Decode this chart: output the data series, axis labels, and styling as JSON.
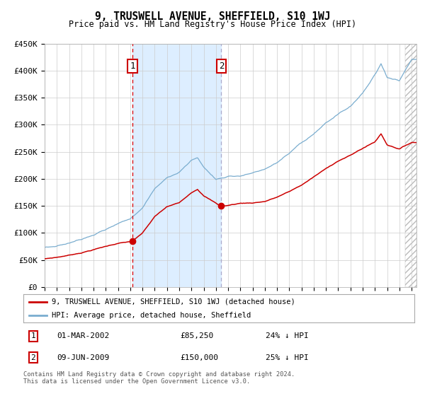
{
  "title": "9, TRUSWELL AVENUE, SHEFFIELD, S10 1WJ",
  "subtitle": "Price paid vs. HM Land Registry's House Price Index (HPI)",
  "x_start_year": 1995,
  "x_end_year": 2025,
  "y_min": 0,
  "y_max": 450000,
  "y_ticks": [
    0,
    50000,
    100000,
    150000,
    200000,
    250000,
    300000,
    350000,
    400000,
    450000
  ],
  "y_tick_labels": [
    "£0",
    "£50K",
    "£100K",
    "£150K",
    "£200K",
    "£250K",
    "£300K",
    "£350K",
    "£400K",
    "£450K"
  ],
  "sale1_date": 2002.17,
  "sale1_price": 85250,
  "sale1_label": "1",
  "sale1_text": "01-MAR-2002",
  "sale1_price_str": "£85,250",
  "sale1_hpi": "24% ↓ HPI",
  "sale2_date": 2009.44,
  "sale2_price": 150000,
  "sale2_label": "2",
  "sale2_text": "09-JUN-2009",
  "sale2_price_str": "£150,000",
  "sale2_hpi": "25% ↓ HPI",
  "red_line_color": "#cc0000",
  "blue_line_color": "#7aadcf",
  "shade_color": "#ddeeff",
  "vline_red_color": "#dd0000",
  "vline_blue_color": "#aaaacc",
  "dot_color": "#cc0000",
  "legend_label_red": "9, TRUSWELL AVENUE, SHEFFIELD, S10 1WJ (detached house)",
  "legend_label_blue": "HPI: Average price, detached house, Sheffield",
  "footer": "Contains HM Land Registry data © Crown copyright and database right 2024.\nThis data is licensed under the Open Government Licence v3.0.",
  "bg_color": "#ffffff",
  "grid_color": "#cccccc",
  "hpi_key_times": [
    1995.0,
    1996.0,
    1997.0,
    1998.0,
    1999.0,
    2000.0,
    2001.0,
    2002.0,
    2003.0,
    2004.0,
    2005.0,
    2006.0,
    2007.0,
    2007.5,
    2008.0,
    2009.0,
    2009.5,
    2010.0,
    2011.0,
    2012.0,
    2013.0,
    2014.0,
    2015.0,
    2016.0,
    2017.0,
    2018.0,
    2019.0,
    2020.0,
    2021.0,
    2022.0,
    2022.5,
    2023.0,
    2024.0,
    2025.0
  ],
  "hpi_key_vals": [
    73000,
    76000,
    82000,
    90000,
    100000,
    110000,
    120000,
    128000,
    150000,
    185000,
    205000,
    215000,
    238000,
    242000,
    225000,
    202000,
    205000,
    208000,
    210000,
    215000,
    220000,
    232000,
    248000,
    265000,
    280000,
    300000,
    315000,
    330000,
    355000,
    390000,
    410000,
    385000,
    380000,
    420000
  ],
  "prop_key_times": [
    1995.0,
    1996.0,
    1997.0,
    1998.0,
    1999.0,
    2000.0,
    2001.0,
    2002.17,
    2003.0,
    2004.0,
    2005.0,
    2006.0,
    2007.0,
    2007.5,
    2008.0,
    2009.44,
    2010.0,
    2011.0,
    2012.0,
    2013.0,
    2014.0,
    2015.0,
    2016.0,
    2017.0,
    2018.0,
    2019.0,
    2020.0,
    2021.0,
    2022.0,
    2022.5,
    2023.0,
    2024.0,
    2025.0
  ],
  "prop_key_vals": [
    52000,
    55000,
    59000,
    64000,
    70000,
    76000,
    82000,
    85250,
    100000,
    130000,
    148000,
    155000,
    175000,
    182000,
    170000,
    150000,
    152000,
    156000,
    157000,
    160000,
    168000,
    178000,
    190000,
    205000,
    220000,
    235000,
    245000,
    258000,
    270000,
    285000,
    265000,
    258000,
    270000
  ]
}
